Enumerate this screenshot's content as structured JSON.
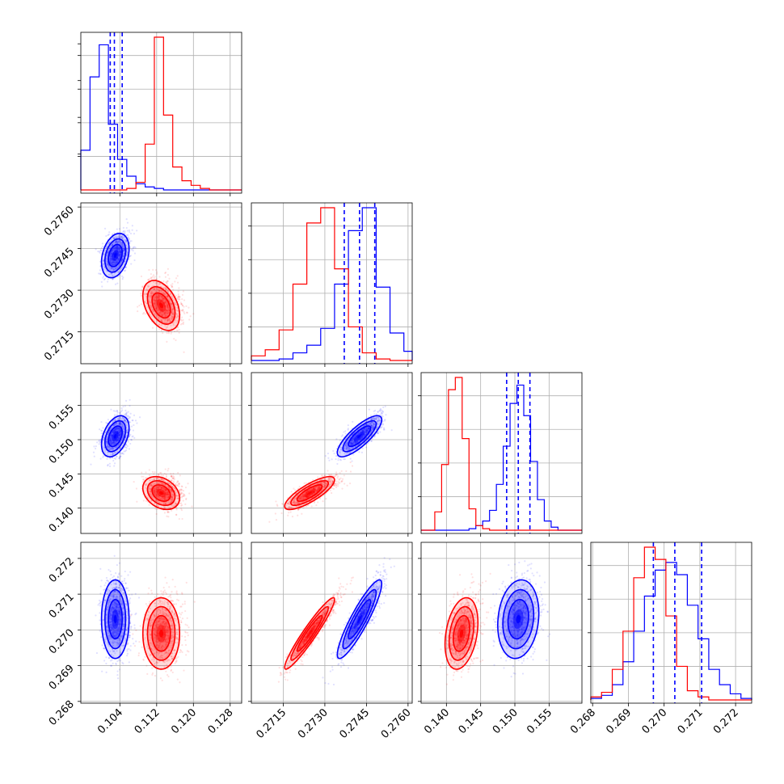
{
  "chart_data": {
    "type": "corner",
    "parameters": [
      {
        "index": 0,
        "range": [
          0.0955,
          0.1305
        ],
        "ticks": [
          "0.104",
          "0.112",
          "0.120",
          "0.128"
        ],
        "tick_values": [
          0.104,
          0.112,
          0.12,
          0.128
        ]
      },
      {
        "index": 1,
        "range": [
          0.27035,
          0.27615
        ],
        "ticks": [
          "0.2715",
          "0.2730",
          "0.2745",
          "0.2760"
        ],
        "tick_values": [
          0.2715,
          0.273,
          0.2745,
          0.276
        ]
      },
      {
        "index": 2,
        "range": [
          0.1363,
          0.1598
        ],
        "ticks": [
          "0.140",
          "0.145",
          "0.150",
          "0.155"
        ],
        "tick_values": [
          0.14,
          0.145,
          0.15,
          0.155
        ]
      },
      {
        "index": 3,
        "range": [
          0.26795,
          0.27245
        ],
        "ticks": [
          "0.268",
          "0.269",
          "0.270",
          "0.271",
          "0.272"
        ],
        "tick_values": [
          0.268,
          0.269,
          0.27,
          0.271,
          0.272
        ]
      }
    ],
    "series": [
      {
        "color": "#0000ff",
        "mean": [
          0.103,
          0.27425,
          0.1505,
          0.2703
        ],
        "std": [
          0.0015,
          0.0004,
          0.0015,
          0.00055
        ],
        "quantiles": [
          [
            0.1019,
            0.1028,
            0.1045
          ],
          [
            0.2737,
            0.27425,
            0.2748
          ],
          [
            0.1488,
            0.1505,
            0.1522
          ],
          [
            0.2697,
            0.2703,
            0.27105
          ]
        ],
        "correlations": [
          [
            1,
            0.3,
            0.4,
            0.0
          ],
          [
            0.3,
            1,
            0.8,
            0.9
          ],
          [
            0.4,
            0.8,
            1,
            0.15
          ],
          [
            0.0,
            0.9,
            0.15,
            1
          ]
        ]
      },
      {
        "color": "#ff0000",
        "mean": [
          0.113,
          0.27245,
          0.1422,
          0.2699
        ],
        "std": [
          0.002,
          0.00045,
          0.0012,
          0.0005
        ],
        "correlations": [
          [
            1,
            -0.4,
            -0.3,
            0.0
          ],
          [
            -0.4,
            1,
            0.8,
            0.95
          ],
          [
            -0.3,
            0.8,
            1,
            0.3
          ],
          [
            0.0,
            0.95,
            0.3,
            1
          ]
        ]
      }
    ],
    "diagonal_hist": [
      {
        "param": 0,
        "bins": [
          0.0955,
          0.0975,
          0.0995,
          0.1015,
          0.1035,
          0.1055,
          0.1075,
          0.1095,
          0.1115,
          0.1135,
          0.1155,
          0.1175,
          0.1195,
          0.1215,
          0.1235,
          0.1255
        ],
        "blue": [
          0.26,
          0.74,
          0.95,
          0.43,
          0.2,
          0.09,
          0.04,
          0.02,
          0.01,
          0.0,
          0.0,
          0.0,
          0.0,
          0.0,
          0.0
        ],
        "red": [
          0.0,
          0.0,
          0.0,
          0.0,
          0.0,
          0.01,
          0.05,
          0.3,
          1.0,
          0.49,
          0.15,
          0.06,
          0.03,
          0.01,
          0.0
        ]
      },
      {
        "param": 1,
        "bins": [
          0.27035,
          0.27085,
          0.27135,
          0.27185,
          0.27235,
          0.27285,
          0.27335,
          0.27385,
          0.27435,
          0.27485,
          0.27535,
          0.27585,
          0.27615
        ],
        "blue": [
          0.0,
          0.0,
          0.01,
          0.05,
          0.1,
          0.21,
          0.5,
          0.85,
          1.0,
          0.48,
          0.18,
          0.06,
          0.0
        ],
        "red": [
          0.03,
          0.07,
          0.2,
          0.5,
          0.9,
          1.0,
          0.6,
          0.22,
          0.05,
          0.01,
          0.0,
          0.0,
          0.0
        ]
      },
      {
        "param": 2,
        "bins": [
          0.1363,
          0.1373,
          0.1383,
          0.1393,
          0.1403,
          0.1413,
          0.1423,
          0.1433,
          0.1443,
          0.1453,
          0.1463,
          0.1473,
          0.1483,
          0.1493,
          0.1503,
          0.1513,
          0.1523,
          0.1533,
          0.1543,
          0.1553,
          0.1563,
          0.1598
        ],
        "blue": [
          0.0,
          0.0,
          0.0,
          0.0,
          0.0,
          0.0,
          0.0,
          0.01,
          0.03,
          0.06,
          0.13,
          0.3,
          0.55,
          0.83,
          0.95,
          0.75,
          0.45,
          0.2,
          0.06,
          0.02,
          0.0
        ],
        "red": [
          0.0,
          0.0,
          0.12,
          0.43,
          0.92,
          1.0,
          0.6,
          0.14,
          0.03,
          0.01,
          0.0,
          0.0,
          0.0,
          0.0,
          0.0,
          0.0,
          0.0,
          0.0,
          0.0,
          0.0,
          0.0
        ]
      },
      {
        "param": 3,
        "bins": [
          0.26795,
          0.26825,
          0.26855,
          0.26885,
          0.26915,
          0.26945,
          0.26975,
          0.27005,
          0.27035,
          0.27065,
          0.27095,
          0.27125,
          0.27155,
          0.27185,
          0.27215,
          0.27245
        ],
        "blue": [
          0.01,
          0.03,
          0.1,
          0.25,
          0.45,
          0.68,
          0.85,
          0.9,
          0.82,
          0.62,
          0.4,
          0.2,
          0.1,
          0.04,
          0.01
        ],
        "red": [
          0.02,
          0.05,
          0.2,
          0.45,
          0.8,
          1.0,
          0.92,
          0.55,
          0.22,
          0.06,
          0.02,
          0.0,
          0.0,
          0.0,
          0.0
        ]
      }
    ],
    "grid": true,
    "legend": "none"
  }
}
